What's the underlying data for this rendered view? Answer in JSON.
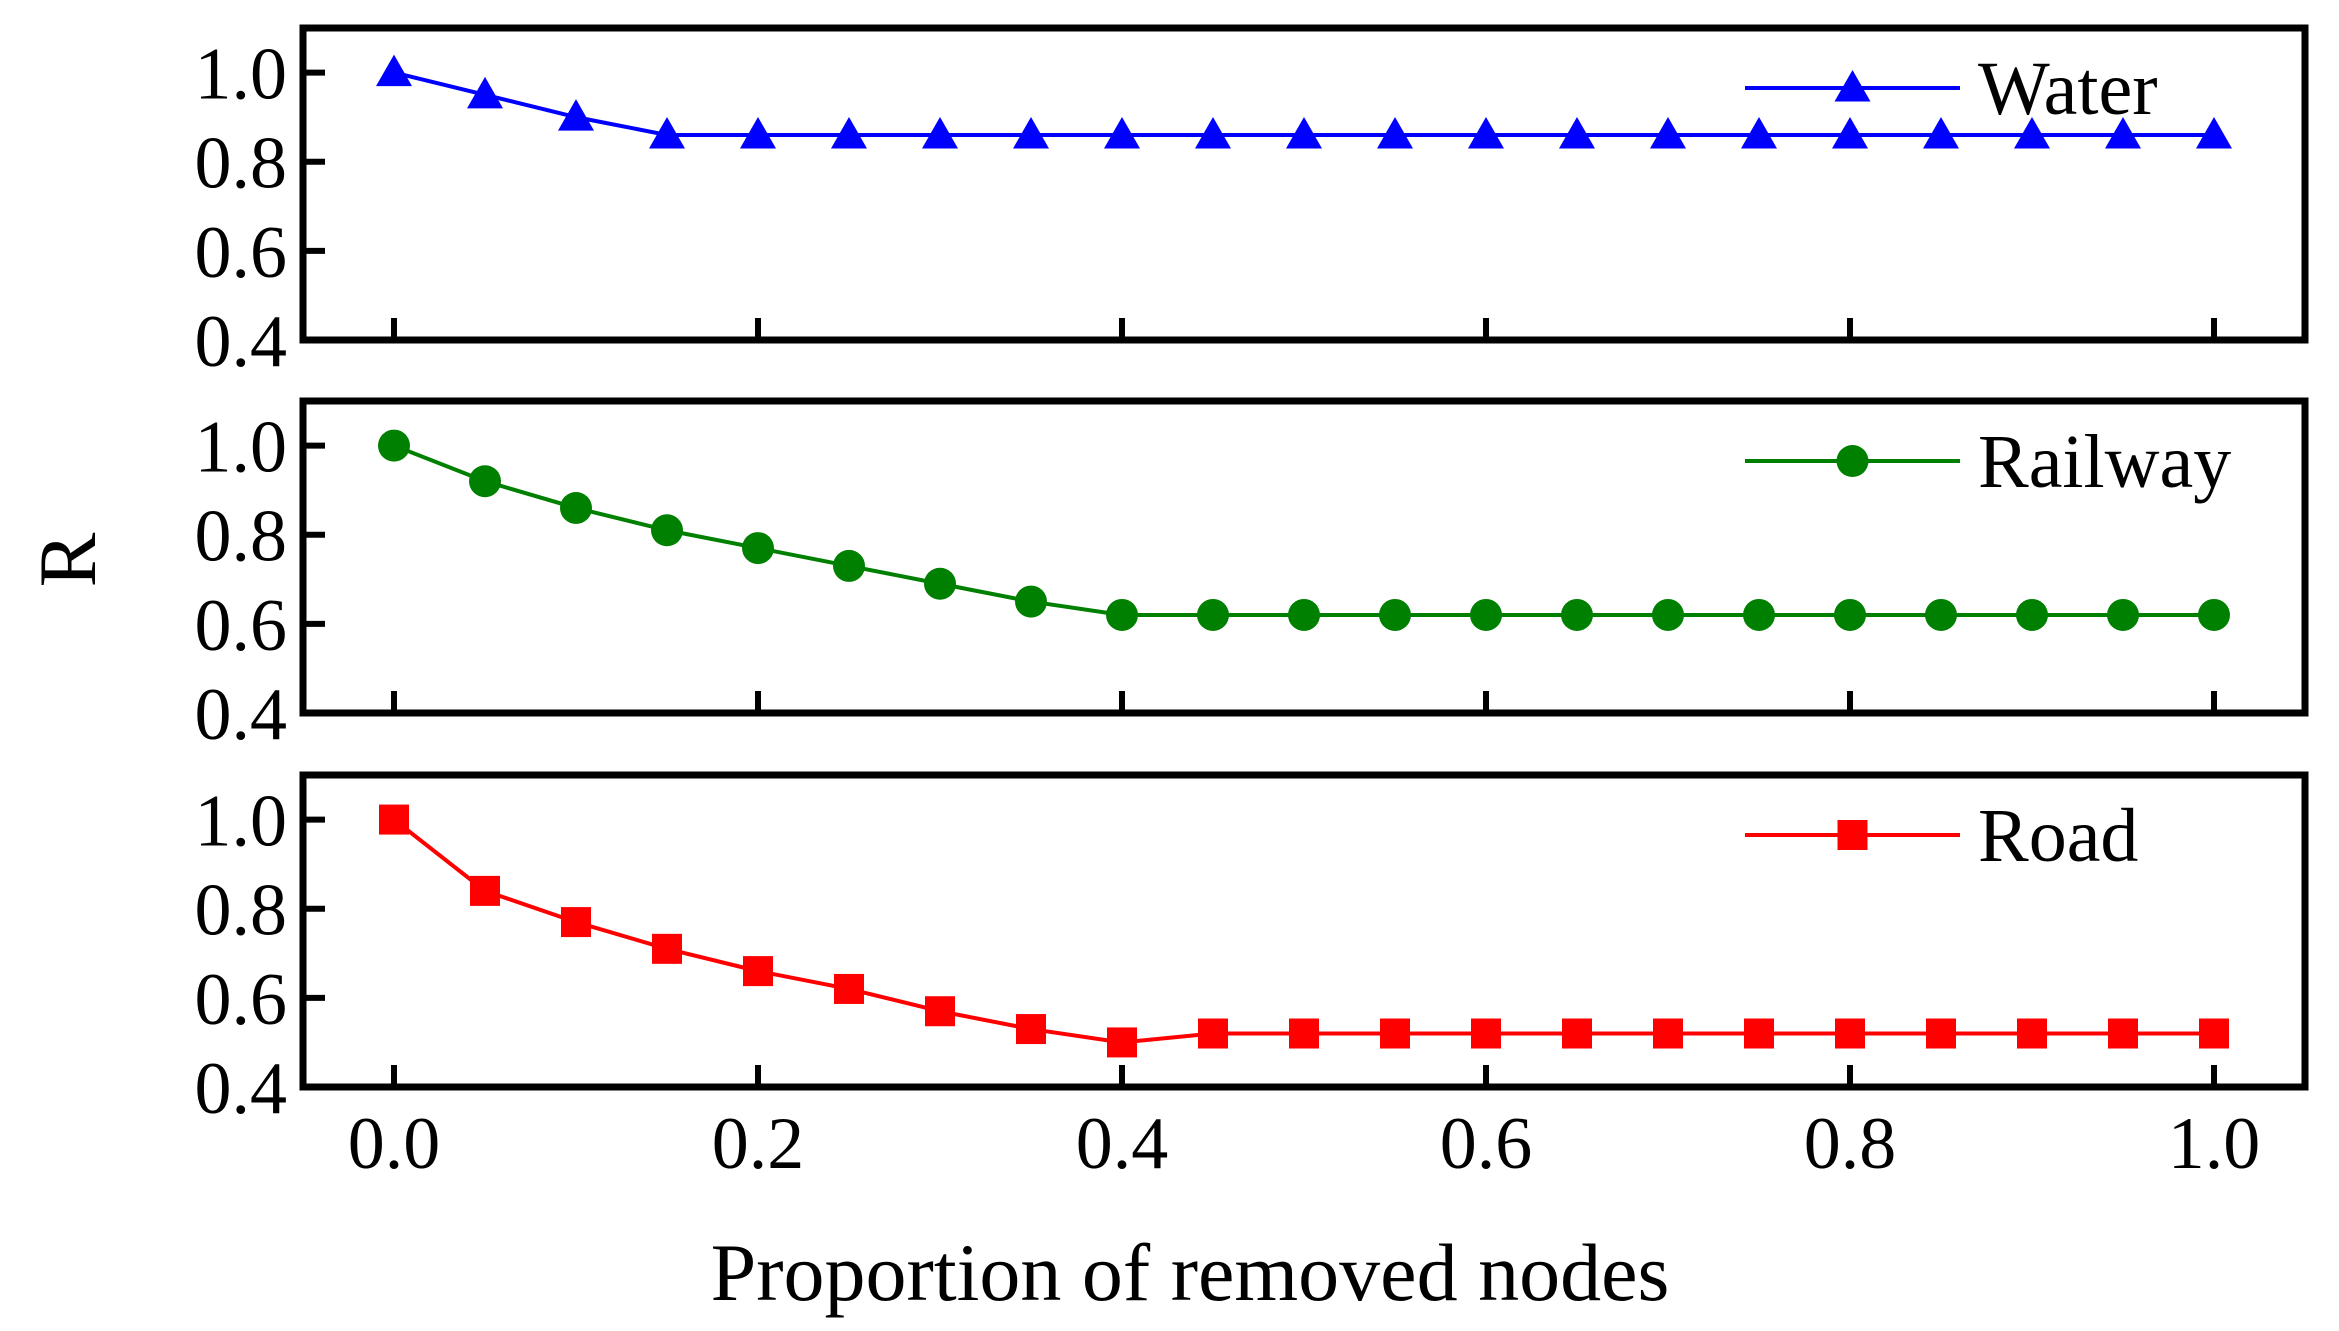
{
  "chart_data": [
    {
      "type": "line",
      "series": [
        {
          "name": "Water",
          "color": "#0000ff",
          "marker": "triangle",
          "x": [
            0.0,
            0.05,
            0.1,
            0.15,
            0.2,
            0.25,
            0.3,
            0.35,
            0.4,
            0.45,
            0.5,
            0.55,
            0.6,
            0.65,
            0.7,
            0.75,
            0.8,
            0.85,
            0.9,
            0.95,
            1.0
          ],
          "values": [
            1.0,
            0.95,
            0.9,
            0.86,
            0.86,
            0.86,
            0.86,
            0.86,
            0.86,
            0.86,
            0.86,
            0.86,
            0.86,
            0.86,
            0.86,
            0.86,
            0.86,
            0.86,
            0.86,
            0.86,
            0.86
          ]
        }
      ],
      "ylim": [
        0.4,
        1.1
      ],
      "yticks": [
        "0.4",
        "0.6",
        "0.8",
        "1.0"
      ],
      "legend": "top-right"
    },
    {
      "type": "line",
      "series": [
        {
          "name": "Railway",
          "color": "#008000",
          "marker": "circle",
          "x": [
            0.0,
            0.05,
            0.1,
            0.15,
            0.2,
            0.25,
            0.3,
            0.35,
            0.4,
            0.45,
            0.5,
            0.55,
            0.6,
            0.65,
            0.7,
            0.75,
            0.8,
            0.85,
            0.9,
            0.95,
            1.0
          ],
          "values": [
            1.0,
            0.92,
            0.86,
            0.81,
            0.77,
            0.73,
            0.69,
            0.65,
            0.62,
            0.62,
            0.62,
            0.62,
            0.62,
            0.62,
            0.62,
            0.62,
            0.62,
            0.62,
            0.62,
            0.62,
            0.62
          ]
        }
      ],
      "ylim": [
        0.4,
        1.1
      ],
      "yticks": [
        "0.4",
        "0.6",
        "0.8",
        "1.0"
      ],
      "legend": "top-right"
    },
    {
      "type": "line",
      "series": [
        {
          "name": "Road",
          "color": "#ff0000",
          "marker": "square",
          "x": [
            0.0,
            0.05,
            0.1,
            0.15,
            0.2,
            0.25,
            0.3,
            0.35,
            0.4,
            0.45,
            0.5,
            0.55,
            0.6,
            0.65,
            0.7,
            0.75,
            0.8,
            0.85,
            0.9,
            0.95,
            1.0
          ],
          "values": [
            1.0,
            0.84,
            0.77,
            0.71,
            0.66,
            0.62,
            0.57,
            0.53,
            0.5,
            0.52,
            0.52,
            0.52,
            0.52,
            0.52,
            0.52,
            0.52,
            0.52,
            0.52,
            0.52,
            0.52,
            0.52
          ]
        }
      ],
      "ylim": [
        0.4,
        1.1
      ],
      "yticks": [
        "0.4",
        "0.6",
        "0.8",
        "1.0"
      ],
      "legend": "top-right"
    }
  ],
  "axes": {
    "xlabel": "Proportion of removed nodes",
    "ylabel": "R",
    "xlim": [
      -0.05,
      1.05
    ],
    "xticks": [
      "0.0",
      "0.2",
      "0.4",
      "0.6",
      "0.8",
      "1.0"
    ]
  }
}
